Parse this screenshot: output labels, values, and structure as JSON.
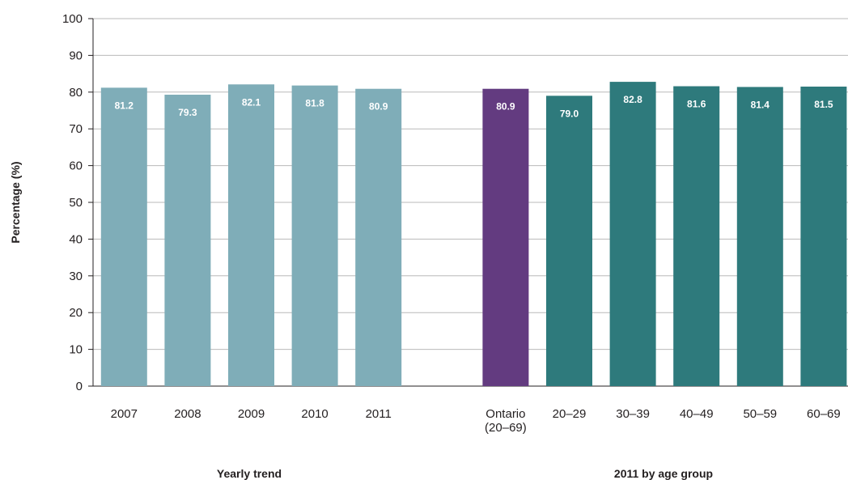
{
  "chart_data": {
    "type": "bar",
    "ylabel": "Percentage (%)",
    "ylim": [
      0,
      100
    ],
    "yticks": [
      0,
      10,
      20,
      30,
      40,
      50,
      60,
      70,
      80,
      90,
      100
    ],
    "grid": true,
    "bars": [
      {
        "label": [
          "2007"
        ],
        "value": 81.2,
        "value_label": "81.2",
        "group": "yearly"
      },
      {
        "label": [
          "2008"
        ],
        "value": 79.3,
        "value_label": "79.3",
        "group": "yearly"
      },
      {
        "label": [
          "2009"
        ],
        "value": 82.1,
        "value_label": "82.1",
        "group": "yearly"
      },
      {
        "label": [
          "2010"
        ],
        "value": 81.8,
        "value_label": "81.8",
        "group": "yearly"
      },
      {
        "label": [
          "2011"
        ],
        "value": 80.9,
        "value_label": "80.9",
        "group": "yearly"
      },
      {
        "label": [
          "Ontario",
          "(20–69)"
        ],
        "value": 80.9,
        "value_label": "80.9",
        "group": "ontario"
      },
      {
        "label": [
          "20–29"
        ],
        "value": 79.0,
        "value_label": "79.0",
        "group": "age"
      },
      {
        "label": [
          "30–39"
        ],
        "value": 82.8,
        "value_label": "82.8",
        "group": "age"
      },
      {
        "label": [
          "40–49"
        ],
        "value": 81.6,
        "value_label": "81.6",
        "group": "age"
      },
      {
        "label": [
          "50–59"
        ],
        "value": 81.4,
        "value_label": "81.4",
        "group": "age"
      },
      {
        "label": [
          "60–69"
        ],
        "value": 81.5,
        "value_label": "81.5",
        "group": "age"
      }
    ],
    "group_titles": {
      "yearly": "Yearly trend",
      "by_age": "2011 by age group"
    },
    "colors": {
      "yearly": "#7fadb8",
      "ontario": "#633b80",
      "age": "#2e7a7c",
      "grid": "#b9b9b9",
      "axis": "#231f20"
    }
  }
}
